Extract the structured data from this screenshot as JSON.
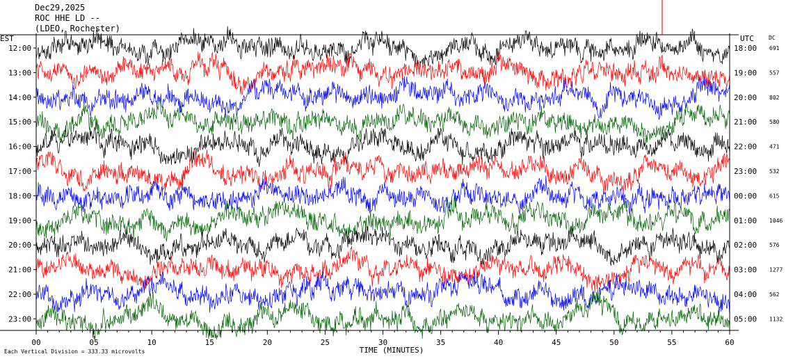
{
  "header": {
    "date": "Dec29,2025",
    "station": "ROC HHE LD --",
    "network": "(LDEO, Rochester)",
    "left_zone": "EST",
    "right_zone": "UTC",
    "dc_label": "DC"
  },
  "footer": {
    "scale_note": "Each Vertical Division =  333.33 microvolts"
  },
  "colors": {
    "traces": [
      "#000000",
      "#ff0000",
      "#0000ff",
      "#006400"
    ],
    "axis": "#000000",
    "marker": "#cc0000"
  },
  "chart_data": {
    "type": "line",
    "title": "ROC HHE LD --",
    "xlabel": "TIME (MINUTES)",
    "ylabel": "",
    "xlim": [
      0,
      60
    ],
    "x_ticks": [
      "00",
      "05",
      "10",
      "15",
      "20",
      "25",
      "30",
      "35",
      "40",
      "45",
      "50",
      "55",
      "60"
    ],
    "rows": [
      {
        "local": "12:00",
        "utc": "18:00",
        "dc": "691"
      },
      {
        "local": "13:00",
        "utc": "19:00",
        "dc": "557"
      },
      {
        "local": "14:00",
        "utc": "20:00",
        "dc": "802"
      },
      {
        "local": "15:00",
        "utc": "21:00",
        "dc": "580"
      },
      {
        "local": "16:00",
        "utc": "22:00",
        "dc": "471"
      },
      {
        "local": "17:00",
        "utc": "23:00",
        "dc": "532"
      },
      {
        "local": "18:00",
        "utc": "00:00",
        "dc": "615"
      },
      {
        "local": "19:00",
        "utc": "01:00",
        "dc": "1046"
      },
      {
        "local": "20:00",
        "utc": "02:00",
        "dc": "576"
      },
      {
        "local": "21:00",
        "utc": "03:00",
        "dc": "1277"
      },
      {
        "local": "22:00",
        "utc": "04:00",
        "dc": "562"
      },
      {
        "local": "23:00",
        "utc": "05:00",
        "dc": "1132"
      }
    ]
  }
}
